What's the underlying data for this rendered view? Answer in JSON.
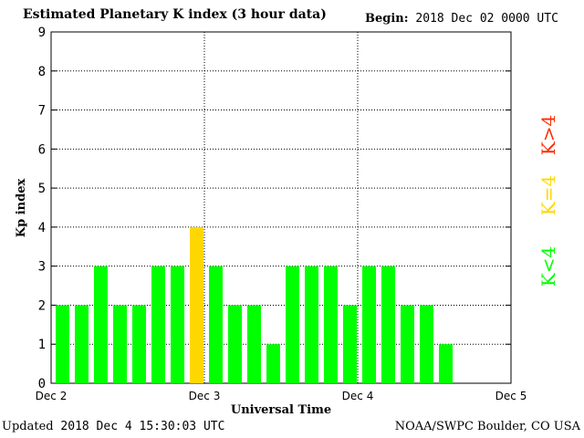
{
  "header": {
    "title": "Estimated Planetary K index (3 hour data)",
    "begin_label": "Begin:",
    "begin_value": "2018 Dec 02 0000 UTC"
  },
  "footer": {
    "updated_label": "Updated",
    "updated_value": "2018 Dec  4 15:30:03 UTC",
    "source": "NOAA/SWPC Boulder, CO USA"
  },
  "legend": {
    "low": "K<4",
    "mid": "K=4",
    "high": "K>4"
  },
  "colors": {
    "low": "#00ff00",
    "mid": "#ffd700",
    "high": "#ff2a00"
  },
  "chart_data": {
    "type": "bar",
    "title": "Estimated Planetary K index (3 hour data)",
    "xlabel": "Universal Time",
    "ylabel": "Kp index",
    "ylim": [
      0,
      9
    ],
    "yticks": [
      0,
      1,
      2,
      3,
      4,
      5,
      6,
      7,
      8,
      9
    ],
    "xticks": [
      "Dec 2",
      "Dec 3",
      "Dec 4",
      "Dec 5"
    ],
    "bins_per_day": 8,
    "total_bins": 24,
    "grid": true,
    "values": [
      2,
      2,
      3,
      2,
      2,
      3,
      3,
      4,
      3,
      2,
      2,
      1,
      3,
      3,
      3,
      2,
      3,
      3,
      2,
      2,
      1
    ]
  }
}
